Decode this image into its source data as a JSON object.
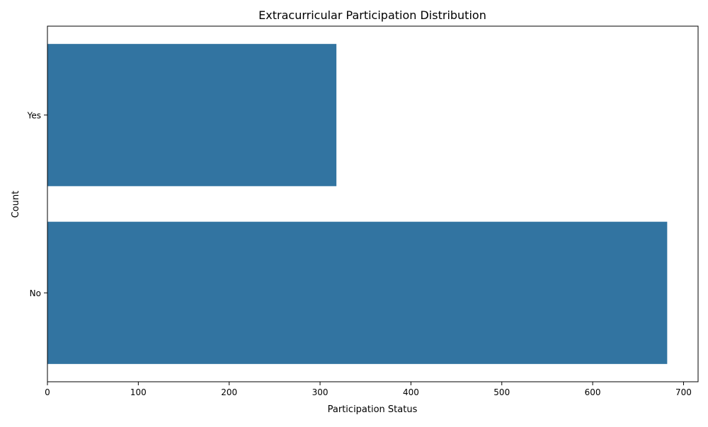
{
  "chart_data": {
    "type": "bar",
    "orientation": "horizontal",
    "title": "Extracurricular Participation Distribution",
    "xlabel": "Participation Status",
    "ylabel": "Count",
    "categories": [
      "Yes",
      "No"
    ],
    "values": [
      318,
      682
    ],
    "xlim": [
      0,
      716
    ],
    "xticks": [
      0,
      100,
      200,
      300,
      400,
      500,
      600,
      700
    ],
    "grid": false,
    "legend": "none",
    "bar_color": "#3274a1"
  }
}
